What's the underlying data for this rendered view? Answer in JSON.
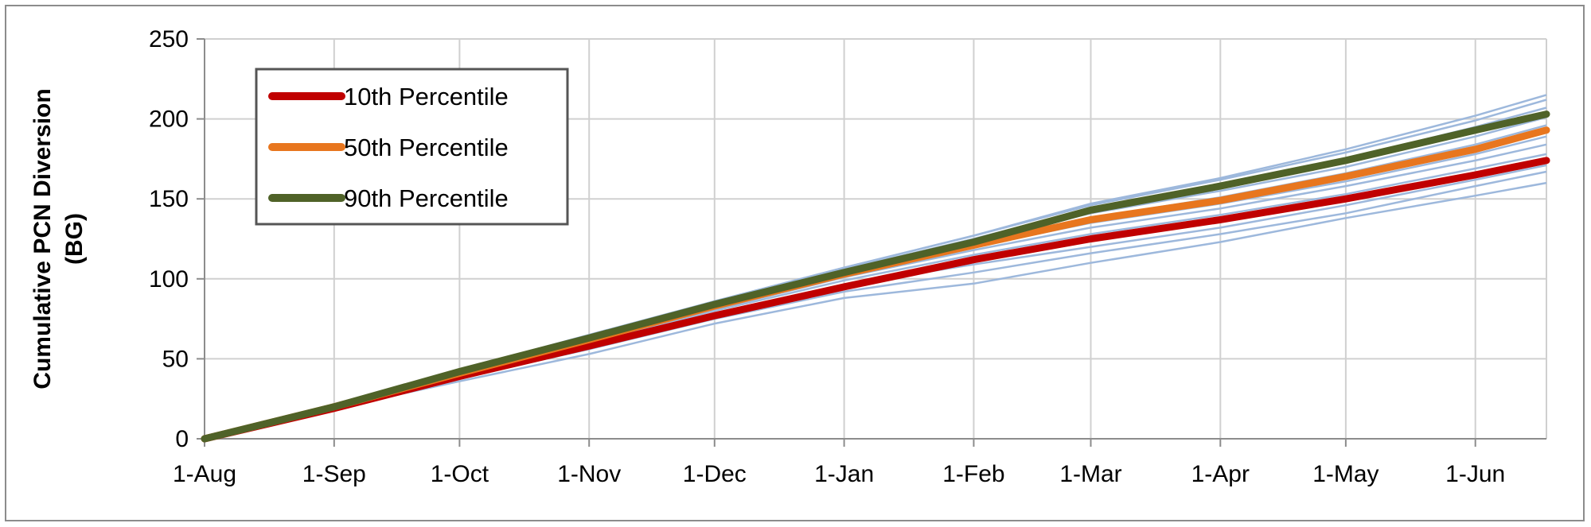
{
  "colors": {
    "ensemble": "#9db8dc",
    "p10": "#c00000",
    "p50": "#e8761e",
    "p90": "#4f6228",
    "grid": "#d0d0d0",
    "axis": "#8c8c8c"
  },
  "chart_data": {
    "type": "line",
    "title": "",
    "xlabel": "",
    "ylabel": [
      "Cumulative PCN Diversion",
      "(BG)"
    ],
    "x_tick_labels": [
      "1-Aug",
      "1-Sep",
      "1-Oct",
      "1-Nov",
      "1-Dec",
      "1-Jan",
      "1-Feb",
      "1-Mar",
      "1-Apr",
      "1-May",
      "1-Jun"
    ],
    "y_tick_labels": [
      "0",
      "50",
      "100",
      "150",
      "200",
      "250"
    ],
    "ylim": [
      0,
      250
    ],
    "xlim": [
      "1-Aug",
      "18-Jun"
    ],
    "grid": true,
    "legend_position": "top-left",
    "series": [
      {
        "name": "10th Percentile",
        "color_key": "p10",
        "points": [
          [
            "1-Aug",
            0
          ],
          [
            "1-Sep",
            19
          ],
          [
            "1-Oct",
            39
          ],
          [
            "1-Nov",
            58
          ],
          [
            "1-Dec",
            77
          ],
          [
            "1-Jan",
            95
          ],
          [
            "1-Feb",
            112
          ],
          [
            "1-Mar",
            125
          ],
          [
            "1-Apr",
            137
          ],
          [
            "1-May",
            150
          ],
          [
            "1-Jun",
            165
          ],
          [
            "18-Jun",
            174
          ]
        ]
      },
      {
        "name": "50th Percentile",
        "color_key": "p50",
        "points": [
          [
            "1-Aug",
            0
          ],
          [
            "1-Sep",
            20
          ],
          [
            "1-Oct",
            41
          ],
          [
            "1-Nov",
            62
          ],
          [
            "1-Dec",
            83
          ],
          [
            "1-Jan",
            103
          ],
          [
            "1-Feb",
            121
          ],
          [
            "1-Mar",
            137
          ],
          [
            "1-Apr",
            149
          ],
          [
            "1-May",
            164
          ],
          [
            "1-Jun",
            181
          ],
          [
            "18-Jun",
            193
          ]
        ]
      },
      {
        "name": "90th Percentile",
        "color_key": "p90",
        "points": [
          [
            "1-Aug",
            0
          ],
          [
            "1-Sep",
            20
          ],
          [
            "1-Oct",
            42
          ],
          [
            "1-Nov",
            63
          ],
          [
            "1-Dec",
            84
          ],
          [
            "1-Jan",
            104
          ],
          [
            "1-Feb",
            123
          ],
          [
            "1-Mar",
            143
          ],
          [
            "1-Apr",
            158
          ],
          [
            "1-May",
            174
          ],
          [
            "1-Jun",
            193
          ],
          [
            "18-Jun",
            203
          ]
        ]
      }
    ],
    "ensemble": [
      [
        [
          "1-Aug",
          0
        ],
        [
          "1-Sep",
          19
        ],
        [
          "1-Oct",
          36
        ],
        [
          "1-Nov",
          53
        ],
        [
          "1-Dec",
          72
        ],
        [
          "1-Jan",
          88
        ],
        [
          "1-Feb",
          97
        ],
        [
          "1-Mar",
          110
        ],
        [
          "1-Apr",
          123
        ],
        [
          "1-May",
          138
        ],
        [
          "1-Jun",
          152
        ],
        [
          "18-Jun",
          160
        ]
      ],
      [
        [
          "1-Aug",
          0
        ],
        [
          "1-Sep",
          20
        ],
        [
          "1-Oct",
          38
        ],
        [
          "1-Nov",
          56
        ],
        [
          "1-Dec",
          75
        ],
        [
          "1-Jan",
          92
        ],
        [
          "1-Feb",
          104
        ],
        [
          "1-Mar",
          116
        ],
        [
          "1-Apr",
          128
        ],
        [
          "1-May",
          141
        ],
        [
          "1-Jun",
          158
        ],
        [
          "18-Jun",
          167
        ]
      ],
      [
        [
          "1-Aug",
          0
        ],
        [
          "1-Sep",
          19
        ],
        [
          "1-Oct",
          39
        ],
        [
          "1-Nov",
          58
        ],
        [
          "1-Dec",
          78
        ],
        [
          "1-Jan",
          96
        ],
        [
          "1-Feb",
          109
        ],
        [
          "1-Mar",
          120
        ],
        [
          "1-Apr",
          132
        ],
        [
          "1-May",
          146
        ],
        [
          "1-Jun",
          162
        ],
        [
          "18-Jun",
          171
        ]
      ],
      [
        [
          "1-Aug",
          0
        ],
        [
          "1-Sep",
          20
        ],
        [
          "1-Oct",
          40
        ],
        [
          "1-Nov",
          60
        ],
        [
          "1-Dec",
          80
        ],
        [
          "1-Jan",
          99
        ],
        [
          "1-Feb",
          115
        ],
        [
          "1-Mar",
          128
        ],
        [
          "1-Apr",
          140
        ],
        [
          "1-May",
          153
        ],
        [
          "1-Jun",
          169
        ],
        [
          "18-Jun",
          178
        ]
      ],
      [
        [
          "1-Aug",
          0
        ],
        [
          "1-Sep",
          20
        ],
        [
          "1-Oct",
          40
        ],
        [
          "1-Nov",
          61
        ],
        [
          "1-Dec",
          81
        ],
        [
          "1-Jan",
          101
        ],
        [
          "1-Feb",
          118
        ],
        [
          "1-Mar",
          132
        ],
        [
          "1-Apr",
          144
        ],
        [
          "1-May",
          158
        ],
        [
          "1-Jun",
          174
        ],
        [
          "18-Jun",
          184
        ]
      ],
      [
        [
          "1-Aug",
          0
        ],
        [
          "1-Sep",
          20
        ],
        [
          "1-Oct",
          41
        ],
        [
          "1-Nov",
          62
        ],
        [
          "1-Dec",
          83
        ],
        [
          "1-Jan",
          103
        ],
        [
          "1-Feb",
          120
        ],
        [
          "1-Mar",
          135
        ],
        [
          "1-Apr",
          147
        ],
        [
          "1-May",
          161
        ],
        [
          "1-Jun",
          178
        ],
        [
          "18-Jun",
          189
        ]
      ],
      [
        [
          "1-Aug",
          0
        ],
        [
          "1-Sep",
          20
        ],
        [
          "1-Oct",
          41
        ],
        [
          "1-Nov",
          62
        ],
        [
          "1-Dec",
          83
        ],
        [
          "1-Jan",
          104
        ],
        [
          "1-Feb",
          122
        ],
        [
          "1-Mar",
          138
        ],
        [
          "1-Apr",
          151
        ],
        [
          "1-May",
          166
        ],
        [
          "1-Jun",
          184
        ],
        [
          "18-Jun",
          196
        ]
      ],
      [
        [
          "1-Aug",
          0
        ],
        [
          "1-Sep",
          21
        ],
        [
          "1-Oct",
          42
        ],
        [
          "1-Nov",
          63
        ],
        [
          "1-Dec",
          84
        ],
        [
          "1-Jan",
          105
        ],
        [
          "1-Feb",
          124
        ],
        [
          "1-Mar",
          141
        ],
        [
          "1-Apr",
          155
        ],
        [
          "1-May",
          170
        ],
        [
          "1-Jun",
          189
        ],
        [
          "18-Jun",
          201
        ]
      ],
      [
        [
          "1-Aug",
          0
        ],
        [
          "1-Sep",
          21
        ],
        [
          "1-Oct",
          42
        ],
        [
          "1-Nov",
          63
        ],
        [
          "1-Dec",
          85
        ],
        [
          "1-Jan",
          106
        ],
        [
          "1-Feb",
          125
        ],
        [
          "1-Mar",
          144
        ],
        [
          "1-Apr",
          159
        ],
        [
          "1-May",
          175
        ],
        [
          "1-Jun",
          195
        ],
        [
          "18-Jun",
          207
        ]
      ],
      [
        [
          "1-Aug",
          0
        ],
        [
          "1-Sep",
          21
        ],
        [
          "1-Oct",
          43
        ],
        [
          "1-Nov",
          64
        ],
        [
          "1-Dec",
          86
        ],
        [
          "1-Jan",
          107
        ],
        [
          "1-Feb",
          127
        ],
        [
          "1-Mar",
          146
        ],
        [
          "1-Apr",
          162
        ],
        [
          "1-May",
          179
        ],
        [
          "1-Jun",
          199
        ],
        [
          "18-Jun",
          212
        ]
      ],
      [
        [
          "1-Aug",
          0
        ],
        [
          "1-Sep",
          21
        ],
        [
          "1-Oct",
          43
        ],
        [
          "1-Nov",
          65
        ],
        [
          "1-Dec",
          86
        ],
        [
          "1-Jan",
          107
        ],
        [
          "1-Feb",
          127
        ],
        [
          "1-Mar",
          147
        ],
        [
          "1-Apr",
          163
        ],
        [
          "1-May",
          181
        ],
        [
          "1-Jun",
          202
        ],
        [
          "18-Jun",
          215
        ]
      ]
    ]
  }
}
